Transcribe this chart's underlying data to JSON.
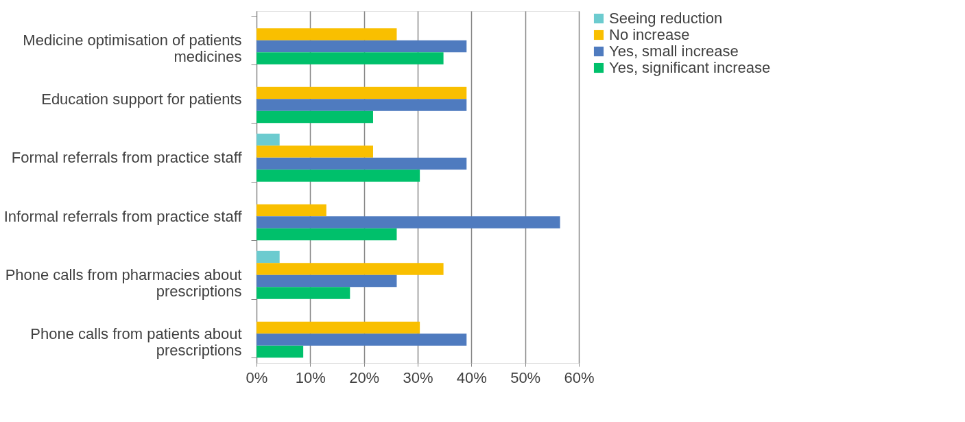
{
  "chart_data": {
    "type": "bar",
    "orientation": "horizontal",
    "categories": [
      "Medicine optimisation of patients medicines",
      "Education support for patients",
      "Formal referrals from practice staff",
      "Informal referrals from practice staff",
      "Phone calls from pharmacies about prescriptions",
      "Phone calls from patients about prescriptions"
    ],
    "series": [
      {
        "name": "Seeing reduction",
        "color": "#6ccbcf",
        "values": [
          0,
          0,
          4.3,
          0,
          4.3,
          0
        ]
      },
      {
        "name": "No increase",
        "color": "#f9bf00",
        "values": [
          26.1,
          39.1,
          21.7,
          13.0,
          34.8,
          30.4
        ]
      },
      {
        "name": "Yes, small increase",
        "color": "#4f7bbf",
        "values": [
          39.1,
          39.1,
          39.1,
          56.5,
          26.1,
          39.1
        ]
      },
      {
        "name": "Yes, significant increase",
        "color": "#00c06b",
        "values": [
          34.8,
          21.7,
          30.4,
          26.1,
          17.4,
          8.7
        ]
      }
    ],
    "xlim": [
      0,
      60
    ],
    "xticks": [
      {
        "value": 0,
        "label": "0%"
      },
      {
        "value": 10,
        "label": "10%"
      },
      {
        "value": 20,
        "label": "20%"
      },
      {
        "value": 30,
        "label": "30%"
      },
      {
        "value": 40,
        "label": "40%"
      },
      {
        "value": 50,
        "label": "50%"
      },
      {
        "value": 60,
        "label": "60%"
      }
    ],
    "grid": "x",
    "legend": "right"
  }
}
